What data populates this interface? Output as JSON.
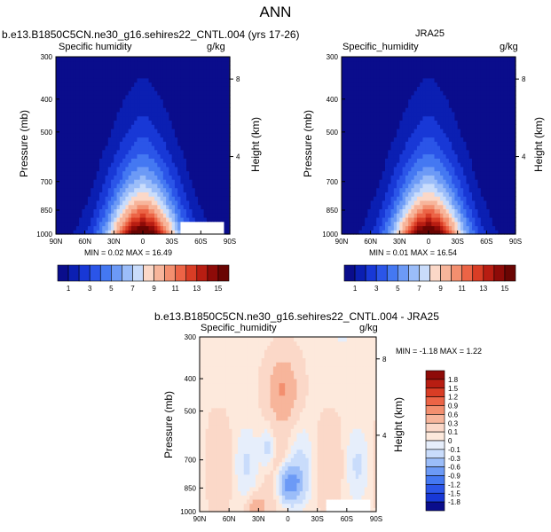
{
  "page_title": "ANN",
  "chart_data": [
    {
      "type": "heatmap",
      "title": "b.e13.B1850C5CN.ne30_g16.sehires22_CNTL.004 (yrs 17-26)",
      "left_subtitle": "Specific humidity",
      "units": "g/kg",
      "ylabel": "Pressure (mb)",
      "y2label": "Height (km)",
      "x_ticks": [
        "90N",
        "60N",
        "30N",
        "0",
        "30S",
        "60S",
        "90S"
      ],
      "y_ticks": [
        "300",
        "400",
        "500",
        "700",
        "850",
        "1000"
      ],
      "y2_ticks": [
        "8",
        "4"
      ],
      "min_max_text": "MIN = 0.02  MAX = 16.49",
      "min": 0.02,
      "max": 16.49,
      "peak_latitude": 0,
      "peak_pressure": 1000,
      "levels": [
        1,
        2,
        3,
        4,
        5,
        6,
        7,
        8,
        9,
        10,
        11,
        12,
        13,
        14,
        15
      ],
      "colorbar_labels": [
        "1",
        "3",
        "5",
        "7",
        "9",
        "11",
        "13",
        "15"
      ]
    },
    {
      "type": "heatmap",
      "title": "JRA25",
      "left_subtitle": "Specific_humidity",
      "units": "g/kg",
      "ylabel": "Pressure (mb)",
      "y2label": "Height (km)",
      "x_ticks": [
        "90N",
        "60N",
        "30N",
        "0",
        "30S",
        "60S",
        "90S"
      ],
      "y_ticks": [
        "300",
        "400",
        "500",
        "700",
        "850",
        "1000"
      ],
      "y2_ticks": [
        "8",
        "4"
      ],
      "min_max_text": "MIN = 0.01  MAX = 16.54",
      "min": 0.01,
      "max": 16.54,
      "peak_latitude": 0,
      "peak_pressure": 1000,
      "levels": [
        1,
        2,
        3,
        4,
        5,
        6,
        7,
        8,
        9,
        10,
        11,
        12,
        13,
        14,
        15
      ],
      "colorbar_labels": [
        "1",
        "3",
        "5",
        "7",
        "9",
        "11",
        "13",
        "15"
      ]
    },
    {
      "type": "heatmap",
      "title": "b.e13.B1850C5CN.ne30_g16.sehires22_CNTL.004 - JRA25",
      "left_subtitle": "Specific_humidity",
      "units": "g/kg",
      "ylabel": "Pressure (mb)",
      "y2label": "Height (km)",
      "x_ticks": [
        "90N",
        "60N",
        "30N",
        "0",
        "30S",
        "60S",
        "90S"
      ],
      "y_ticks": [
        "300",
        "400",
        "500",
        "700",
        "850",
        "1000"
      ],
      "y2_ticks": [
        "8",
        "4"
      ],
      "min_max_text": "MIN = -1.18  MAX =  1.22",
      "min": -1.18,
      "max": 1.22,
      "levels": [
        -1.8,
        -1.5,
        -1.2,
        -0.9,
        -0.6,
        -0.3,
        -0.1,
        0,
        0.1,
        0.3,
        0.6,
        0.9,
        1.2,
        1.5,
        1.8
      ],
      "colorbar_labels": [
        "1.8",
        "1.5",
        "1.2",
        "0.9",
        "0.6",
        "0.3",
        "0.1",
        "0",
        "-0.1",
        "-0.3",
        "-0.6",
        "-0.9",
        "-1.2",
        "-1.5",
        "-1.8"
      ]
    }
  ],
  "colors": {
    "humidity_scale": [
      "#0a0d8c",
      "#0b1fb2",
      "#1838d6",
      "#2b55e8",
      "#4478f2",
      "#6c9af6",
      "#9bbdf9",
      "#c9dcfb",
      "#fbd8c8",
      "#f7b59b",
      "#f38f6f",
      "#ec6446",
      "#d93d25",
      "#b81d12",
      "#8e0b08",
      "#6a0503"
    ],
    "diff_scale": [
      "#8e0b08",
      "#b81d12",
      "#d93d25",
      "#ec6446",
      "#f38f6f",
      "#f7b59b",
      "#fbd8c8",
      "#fde9dc",
      "#e6eefb",
      "#c9dcfb",
      "#9bbdf9",
      "#6c9af6",
      "#4478f2",
      "#2b55e8",
      "#1838d6",
      "#0a0d8c"
    ]
  }
}
